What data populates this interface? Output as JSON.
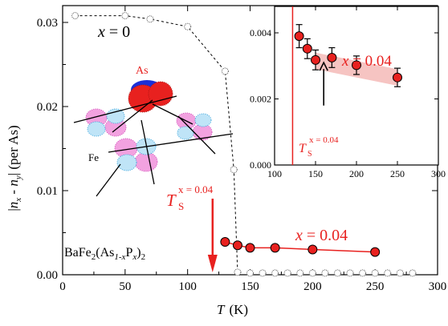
{
  "chart_data": [
    {
      "type": "scatter",
      "xlabel": "T",
      "xlabel_unit": "(K)",
      "ylabel": "|n_x - n_y| (per As)",
      "xlim": [
        0,
        300
      ],
      "ylim": [
        0,
        0.032
      ],
      "x_ticks": [
        0,
        50,
        100,
        150,
        200,
        250,
        300
      ],
      "x_tick_labels": [
        "0",
        "50",
        "100",
        "150",
        "200",
        "250",
        "300"
      ],
      "y_ticks": [
        0,
        0.01,
        0.02,
        0.03
      ],
      "y_tick_labels": [
        "0.00",
        "0.01",
        "0.02",
        "0.03"
      ],
      "grid": false,
      "series": [
        {
          "name": "x = 0",
          "style": "open-circles-dashed",
          "color": "#000000",
          "x": [
            10,
            50,
            70,
            100,
            130,
            137,
            140,
            150,
            160,
            170,
            180,
            190,
            200,
            210,
            220,
            230,
            240,
            250,
            260,
            270,
            280
          ],
          "y": [
            0.0308,
            0.0308,
            0.0304,
            0.0295,
            0.0242,
            0.0125,
            0.0003,
            0.0002,
            0.0002,
            0.0002,
            0.0002,
            0.0002,
            0.0002,
            0.0002,
            0.0002,
            0.0002,
            0.0002,
            0.0002,
            0.0002,
            0.0002,
            0.0002
          ]
        },
        {
          "name": "x = 0.04",
          "style": "filled-circles-line",
          "color": "#e8211f",
          "x": [
            130,
            140,
            150,
            170,
            200,
            250
          ],
          "y": [
            0.0039,
            0.0035,
            0.0032,
            0.0032,
            0.003,
            0.0027
          ]
        }
      ],
      "annotations": {
        "x0_label": "x = 0",
        "x004_label": "x = 0.04",
        "ts_main": "T",
        "ts_sub": "S",
        "ts_sup": "x = 0.04",
        "ts_value": 120,
        "compound_1": "BaFe",
        "compound_2": "2",
        "compound_3": "(As",
        "compound_4": "1-x",
        "compound_5": "P",
        "compound_6": "x",
        "compound_7": ")",
        "compound_8": "2",
        "orbital_as_label": "As",
        "orbital_fe_label": "Fe"
      }
    },
    {
      "type": "scatter",
      "xlim": [
        100,
        300
      ],
      "ylim": [
        0,
        0.0048
      ],
      "x_ticks": [
        100,
        150,
        200,
        250,
        300
      ],
      "x_tick_labels": [
        "100",
        "150",
        "200",
        "250",
        "300"
      ],
      "y_ticks": [
        0,
        0.002,
        0.004
      ],
      "y_tick_labels": [
        "0.000",
        "0.002",
        "0.004"
      ],
      "grid": false,
      "series": [
        {
          "name": "x = 0.04",
          "color": "#e8211f",
          "x": [
            130,
            140,
            150,
            170,
            200,
            250
          ],
          "y": [
            0.0039,
            0.00352,
            0.00318,
            0.00325,
            0.00302,
            0.00265
          ],
          "err": [
            0.00035,
            0.0003,
            0.0003,
            0.0003,
            0.00028,
            0.00028
          ]
        }
      ],
      "band": {
        "x": [
          150,
          250
        ],
        "y_low": [
          0.0029,
          0.0024
        ],
        "y_high": [
          0.0034,
          0.0029
        ],
        "color": "#f6c4c2"
      },
      "ts_value": 122,
      "arrow_x": 160,
      "arrow_y_from": 0.0018,
      "arrow_y_to": 0.0031,
      "annotations": {
        "label": "x = 0.04",
        "ts_main": "T",
        "ts_sub": "S",
        "ts_sup": "x = 0.04"
      }
    }
  ]
}
